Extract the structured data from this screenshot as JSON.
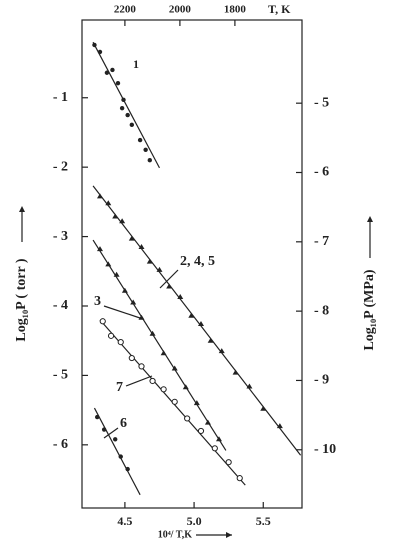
{
  "chart_data": {
    "type": "scatter",
    "x_label": "10⁴/ T,K",
    "x2_label": "T, K",
    "y_label": "Log₁₀P ( torr )",
    "y2_label": "Log₁₀P (MPa)",
    "xlim": [
      4.19,
      5.78
    ],
    "xticks": [
      4.5,
      {
        "value": 5,
        "label": "5.0"
      },
      5.5
    ],
    "x2lim": [
      2356,
      1556
    ],
    "x2ticks": [
      2200,
      2000,
      1800
    ],
    "ylim": [
      -6.91,
      0.12
    ],
    "yticks": [
      {
        "value": -1,
        "label": "- 1"
      },
      {
        "value": -2,
        "label": "- 2"
      },
      {
        "value": -3,
        "label": "- 3"
      },
      {
        "value": -4,
        "label": "- 4"
      },
      {
        "value": -5,
        "label": "- 5"
      },
      {
        "value": -6,
        "label": "- 6"
      }
    ],
    "y2lim": [
      -10.84,
      -3.8
    ],
    "y2ticks": [
      {
        "value": -5,
        "label": "- 5"
      },
      {
        "value": -6,
        "label": "- 6"
      },
      {
        "value": -7,
        "label": "- 7"
      },
      {
        "value": -8,
        "label": "- 8"
      },
      {
        "value": -9,
        "label": "- 9"
      },
      {
        "value": -10,
        "label": "- 10"
      }
    ],
    "series": [
      {
        "name": "1",
        "color": "#222",
        "marker": "dot",
        "x": [
          4.28,
          4.32,
          4.37,
          4.41,
          4.45,
          4.49,
          4.48,
          4.52,
          4.55,
          4.61,
          4.65,
          4.68
        ],
        "values": [
          -0.24,
          -0.34,
          -0.64,
          -0.6,
          -0.79,
          -1.03,
          -1.15,
          -1.25,
          -1.39,
          -1.61,
          -1.75,
          -1.9
        ],
        "fit": {
          "x": [
            4.27,
            4.75
          ],
          "values": [
            -0.2,
            -2.01
          ]
        }
      },
      {
        "name": "2, 4, 5",
        "color": "#222",
        "marker": "triangle",
        "x": [
          4.32,
          4.38,
          4.43,
          4.48,
          4.55,
          4.62,
          4.68,
          4.75,
          4.82,
          4.9,
          4.98,
          5.05,
          5.12,
          5.2,
          5.3,
          5.4,
          5.5,
          5.62
        ],
        "values": [
          -2.42,
          -2.52,
          -2.71,
          -2.78,
          -3.03,
          -3.15,
          -3.36,
          -3.48,
          -3.72,
          -3.87,
          -4.14,
          -4.26,
          -4.5,
          -4.65,
          -4.96,
          -5.16,
          -5.48,
          -5.73
        ],
        "fit": {
          "x": [
            4.27,
            5.77
          ],
          "values": [
            -2.27,
            -6.15
          ]
        }
      },
      {
        "name": "3",
        "color": "#222",
        "marker": "triangle",
        "x": [
          4.32,
          4.38,
          4.44,
          4.5,
          4.56,
          4.62,
          4.7,
          4.78,
          4.86,
          4.94,
          5.02,
          5.1,
          5.18
        ],
        "values": [
          -3.18,
          -3.4,
          -3.55,
          -3.78,
          -3.95,
          -4.17,
          -4.4,
          -4.68,
          -4.9,
          -5.17,
          -5.4,
          -5.68,
          -5.92
        ],
        "fit": {
          "x": [
            4.27,
            5.23
          ],
          "values": [
            -3.05,
            -6.08
          ]
        }
      },
      {
        "name": "7",
        "color": "#222",
        "marker": "circle",
        "x": [
          4.34,
          4.4,
          4.47,
          4.55,
          4.62,
          4.7,
          4.78,
          4.86,
          4.95,
          5.05,
          5.15,
          5.25,
          5.33
        ],
        "values": [
          -4.22,
          -4.43,
          -4.52,
          -4.75,
          -4.87,
          -5.08,
          -5.2,
          -5.38,
          -5.62,
          -5.8,
          -6.05,
          -6.25,
          -6.48
        ],
        "fit": {
          "x": [
            4.32,
            5.37
          ],
          "values": [
            -4.2,
            -6.58
          ]
        }
      },
      {
        "name": "6",
        "color": "#222",
        "marker": "dot",
        "x": [
          4.3,
          4.35,
          4.43,
          4.47,
          4.52
        ],
        "values": [
          -5.6,
          -5.78,
          -5.92,
          -6.17,
          -6.35
        ],
        "fit": {
          "x": [
            4.28,
            4.61
          ],
          "values": [
            -5.47,
            -6.72
          ]
        }
      }
    ]
  }
}
